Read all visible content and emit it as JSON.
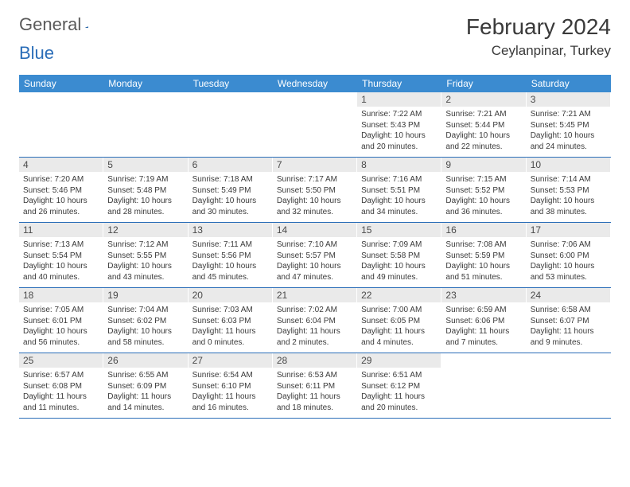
{
  "brand": {
    "part1": "General",
    "part2": "Blue"
  },
  "title": "February 2024",
  "location": "Ceylanpinar, Turkey",
  "colors": {
    "header_bg": "#3b8bd0",
    "header_text": "#ffffff",
    "border": "#2a6db8",
    "daynum_bg": "#eaeaea",
    "text": "#3a3a3a"
  },
  "weekdays": [
    "Sunday",
    "Monday",
    "Tuesday",
    "Wednesday",
    "Thursday",
    "Friday",
    "Saturday"
  ],
  "weeks": [
    [
      null,
      null,
      null,
      null,
      {
        "n": "1",
        "sr": "Sunrise: 7:22 AM",
        "ss": "Sunset: 5:43 PM",
        "dl1": "Daylight: 10 hours",
        "dl2": "and 20 minutes."
      },
      {
        "n": "2",
        "sr": "Sunrise: 7:21 AM",
        "ss": "Sunset: 5:44 PM",
        "dl1": "Daylight: 10 hours",
        "dl2": "and 22 minutes."
      },
      {
        "n": "3",
        "sr": "Sunrise: 7:21 AM",
        "ss": "Sunset: 5:45 PM",
        "dl1": "Daylight: 10 hours",
        "dl2": "and 24 minutes."
      }
    ],
    [
      {
        "n": "4",
        "sr": "Sunrise: 7:20 AM",
        "ss": "Sunset: 5:46 PM",
        "dl1": "Daylight: 10 hours",
        "dl2": "and 26 minutes."
      },
      {
        "n": "5",
        "sr": "Sunrise: 7:19 AM",
        "ss": "Sunset: 5:48 PM",
        "dl1": "Daylight: 10 hours",
        "dl2": "and 28 minutes."
      },
      {
        "n": "6",
        "sr": "Sunrise: 7:18 AM",
        "ss": "Sunset: 5:49 PM",
        "dl1": "Daylight: 10 hours",
        "dl2": "and 30 minutes."
      },
      {
        "n": "7",
        "sr": "Sunrise: 7:17 AM",
        "ss": "Sunset: 5:50 PM",
        "dl1": "Daylight: 10 hours",
        "dl2": "and 32 minutes."
      },
      {
        "n": "8",
        "sr": "Sunrise: 7:16 AM",
        "ss": "Sunset: 5:51 PM",
        "dl1": "Daylight: 10 hours",
        "dl2": "and 34 minutes."
      },
      {
        "n": "9",
        "sr": "Sunrise: 7:15 AM",
        "ss": "Sunset: 5:52 PM",
        "dl1": "Daylight: 10 hours",
        "dl2": "and 36 minutes."
      },
      {
        "n": "10",
        "sr": "Sunrise: 7:14 AM",
        "ss": "Sunset: 5:53 PM",
        "dl1": "Daylight: 10 hours",
        "dl2": "and 38 minutes."
      }
    ],
    [
      {
        "n": "11",
        "sr": "Sunrise: 7:13 AM",
        "ss": "Sunset: 5:54 PM",
        "dl1": "Daylight: 10 hours",
        "dl2": "and 40 minutes."
      },
      {
        "n": "12",
        "sr": "Sunrise: 7:12 AM",
        "ss": "Sunset: 5:55 PM",
        "dl1": "Daylight: 10 hours",
        "dl2": "and 43 minutes."
      },
      {
        "n": "13",
        "sr": "Sunrise: 7:11 AM",
        "ss": "Sunset: 5:56 PM",
        "dl1": "Daylight: 10 hours",
        "dl2": "and 45 minutes."
      },
      {
        "n": "14",
        "sr": "Sunrise: 7:10 AM",
        "ss": "Sunset: 5:57 PM",
        "dl1": "Daylight: 10 hours",
        "dl2": "and 47 minutes."
      },
      {
        "n": "15",
        "sr": "Sunrise: 7:09 AM",
        "ss": "Sunset: 5:58 PM",
        "dl1": "Daylight: 10 hours",
        "dl2": "and 49 minutes."
      },
      {
        "n": "16",
        "sr": "Sunrise: 7:08 AM",
        "ss": "Sunset: 5:59 PM",
        "dl1": "Daylight: 10 hours",
        "dl2": "and 51 minutes."
      },
      {
        "n": "17",
        "sr": "Sunrise: 7:06 AM",
        "ss": "Sunset: 6:00 PM",
        "dl1": "Daylight: 10 hours",
        "dl2": "and 53 minutes."
      }
    ],
    [
      {
        "n": "18",
        "sr": "Sunrise: 7:05 AM",
        "ss": "Sunset: 6:01 PM",
        "dl1": "Daylight: 10 hours",
        "dl2": "and 56 minutes."
      },
      {
        "n": "19",
        "sr": "Sunrise: 7:04 AM",
        "ss": "Sunset: 6:02 PM",
        "dl1": "Daylight: 10 hours",
        "dl2": "and 58 minutes."
      },
      {
        "n": "20",
        "sr": "Sunrise: 7:03 AM",
        "ss": "Sunset: 6:03 PM",
        "dl1": "Daylight: 11 hours",
        "dl2": "and 0 minutes."
      },
      {
        "n": "21",
        "sr": "Sunrise: 7:02 AM",
        "ss": "Sunset: 6:04 PM",
        "dl1": "Daylight: 11 hours",
        "dl2": "and 2 minutes."
      },
      {
        "n": "22",
        "sr": "Sunrise: 7:00 AM",
        "ss": "Sunset: 6:05 PM",
        "dl1": "Daylight: 11 hours",
        "dl2": "and 4 minutes."
      },
      {
        "n": "23",
        "sr": "Sunrise: 6:59 AM",
        "ss": "Sunset: 6:06 PM",
        "dl1": "Daylight: 11 hours",
        "dl2": "and 7 minutes."
      },
      {
        "n": "24",
        "sr": "Sunrise: 6:58 AM",
        "ss": "Sunset: 6:07 PM",
        "dl1": "Daylight: 11 hours",
        "dl2": "and 9 minutes."
      }
    ],
    [
      {
        "n": "25",
        "sr": "Sunrise: 6:57 AM",
        "ss": "Sunset: 6:08 PM",
        "dl1": "Daylight: 11 hours",
        "dl2": "and 11 minutes."
      },
      {
        "n": "26",
        "sr": "Sunrise: 6:55 AM",
        "ss": "Sunset: 6:09 PM",
        "dl1": "Daylight: 11 hours",
        "dl2": "and 14 minutes."
      },
      {
        "n": "27",
        "sr": "Sunrise: 6:54 AM",
        "ss": "Sunset: 6:10 PM",
        "dl1": "Daylight: 11 hours",
        "dl2": "and 16 minutes."
      },
      {
        "n": "28",
        "sr": "Sunrise: 6:53 AM",
        "ss": "Sunset: 6:11 PM",
        "dl1": "Daylight: 11 hours",
        "dl2": "and 18 minutes."
      },
      {
        "n": "29",
        "sr": "Sunrise: 6:51 AM",
        "ss": "Sunset: 6:12 PM",
        "dl1": "Daylight: 11 hours",
        "dl2": "and 20 minutes."
      },
      null,
      null
    ]
  ]
}
